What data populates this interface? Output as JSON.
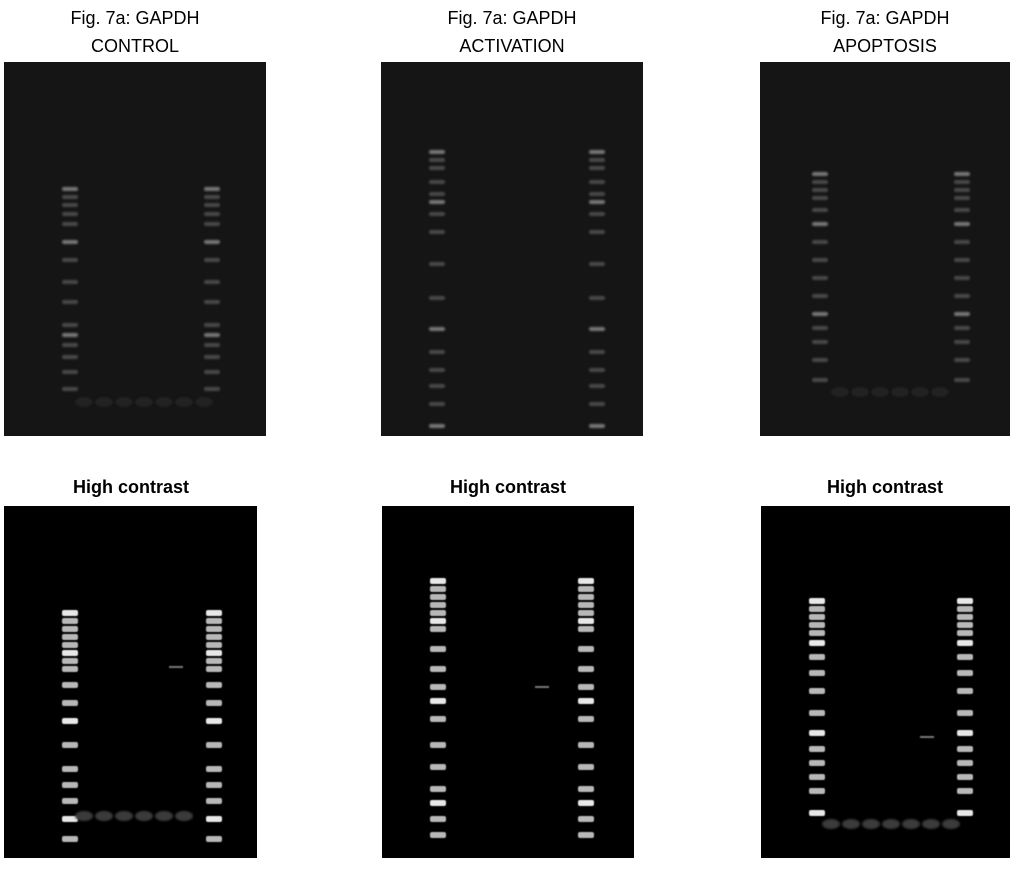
{
  "panels": [
    {
      "title": [
        "Fig. 7a: GAPDH",
        "CONTROL"
      ],
      "contrast_label": "High contrast"
    },
    {
      "title": [
        "Fig. 7a: GAPDH",
        "ACTIVATION"
      ],
      "contrast_label": "High contrast"
    },
    {
      "title": [
        "Fig. 7a: GAPDH",
        "APOPTOSIS"
      ],
      "contrast_label": "High contrast"
    }
  ]
}
